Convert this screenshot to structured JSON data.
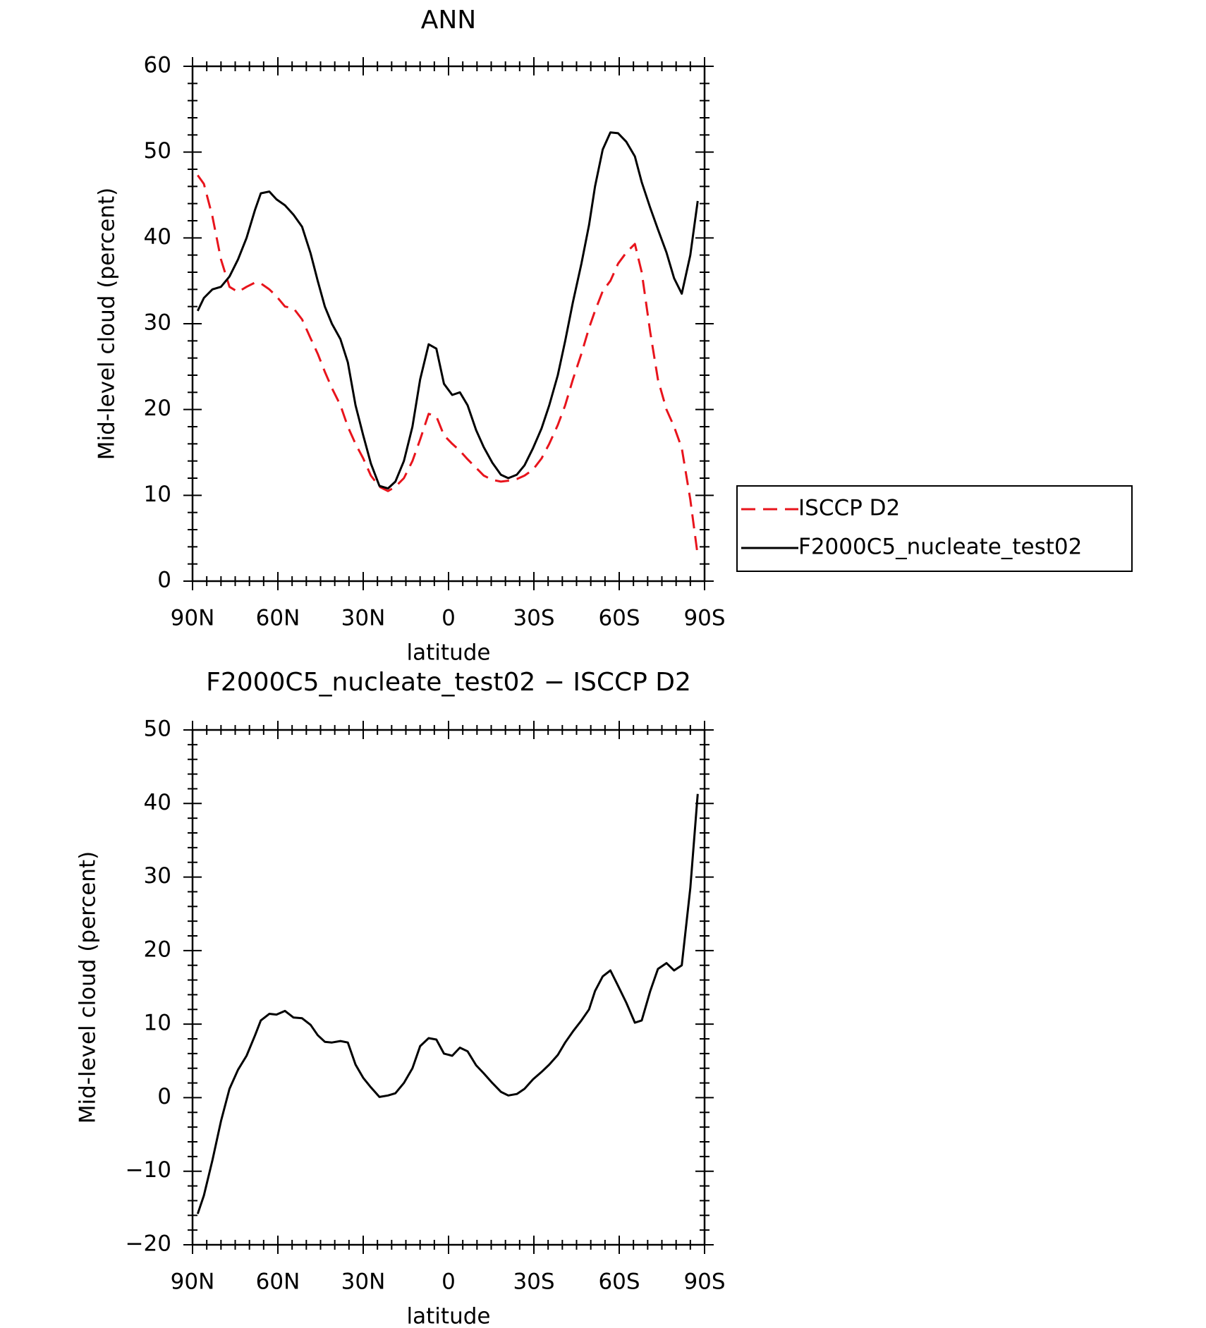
{
  "chart_data": [
    {
      "type": "line",
      "title": "ANN",
      "xlabel": "latitude",
      "ylabel": "Mid-level cloud (percent)",
      "x": [
        88.2,
        86,
        83,
        80,
        77,
        74,
        71,
        68,
        66,
        63,
        60.5,
        57.5,
        54.5,
        51.5,
        48.5,
        46,
        43.5,
        41,
        38,
        35.4,
        32.7,
        30,
        27.3,
        24.3,
        21.3,
        18.7,
        15.7,
        12.7,
        10,
        7,
        4.3,
        1.6,
        -1.3,
        -4,
        -6.7,
        -9.7,
        -12.4,
        -15.4,
        -18.4,
        -21,
        -24,
        -26.7,
        -29.7,
        -32.7,
        -35.4,
        -38.4,
        -41,
        -43.7,
        -46.7,
        -49.4,
        -51.5,
        -54.2,
        -56.9,
        -59.6,
        -62.5,
        -65.5,
        -67.9,
        -70.9,
        -73.6,
        -76.6,
        -79.3,
        -82,
        -85,
        -87.6
      ],
      "series": [
        {
          "name": "ISCCP D2",
          "color": "#e8141c",
          "dashed": true,
          "values": [
            47.3,
            46.3,
            42.5,
            37.5,
            34.3,
            33.7,
            34.3,
            34.8,
            34.7,
            34,
            33.2,
            32,
            31.8,
            30.5,
            28.3,
            26.5,
            24.4,
            22.5,
            20.5,
            18,
            16,
            14.3,
            12.3,
            11,
            10.5,
            11,
            12,
            14,
            16.5,
            19.5,
            19.2,
            17,
            16,
            15.2,
            14.2,
            13.2,
            12.3,
            11.8,
            11.6,
            11.7,
            11.9,
            12.3,
            13,
            14.3,
            16,
            18.2,
            20.5,
            23.5,
            26.5,
            29.5,
            31.5,
            33.8,
            35,
            37,
            38.3,
            39.3,
            36,
            29,
            23.5,
            20,
            18,
            15.5,
            9.5,
            3
          ]
        },
        {
          "name": "F2000C5_nucleate_test02",
          "color": "#000000",
          "dashed": false,
          "values": [
            31.5,
            33,
            34,
            34.3,
            35.5,
            37.5,
            40,
            43.3,
            45.2,
            45.4,
            44.5,
            43.8,
            42.7,
            41.3,
            38.2,
            35,
            32,
            30,
            28.2,
            25.5,
            20.5,
            17,
            13.7,
            11.1,
            10.8,
            11.6,
            14,
            18,
            23.5,
            27.6,
            27.1,
            23,
            21.7,
            22,
            20.5,
            17.6,
            15.6,
            13.8,
            12.4,
            12,
            12.4,
            13.5,
            15.5,
            17.8,
            20.5,
            24,
            28,
            32.5,
            37,
            41.5,
            46,
            50.3,
            52.3,
            52.2,
            51.2,
            49.5,
            46.5,
            43.5,
            41,
            38.3,
            35.3,
            33.5,
            38,
            44.3
          ]
        }
      ],
      "xlim": [
        90,
        -90
      ],
      "xticks": [
        {
          "value": 90,
          "label": "90N"
        },
        {
          "value": 60,
          "label": "60N"
        },
        {
          "value": 30,
          "label": "30N"
        },
        0,
        {
          "value": -30,
          "label": "30S"
        },
        {
          "value": -60,
          "label": "60S"
        },
        {
          "value": -90,
          "label": "90S"
        }
      ],
      "ylim": [
        0,
        60
      ],
      "yticks": [
        0,
        10,
        20,
        30,
        40,
        50,
        60
      ],
      "legend": "right"
    },
    {
      "type": "line",
      "title": "F2000C5_nucleate_test02 − ISCCP D2",
      "xlabel": "latitude",
      "ylabel": "Mid-level cloud (percent)",
      "x": [
        88.2,
        86,
        83,
        80,
        77,
        74,
        71,
        68,
        66,
        63,
        60.5,
        57.5,
        54.5,
        51.5,
        48.5,
        46,
        43.5,
        41,
        38,
        35.4,
        32.7,
        30,
        27.3,
        24.3,
        21.3,
        18.7,
        15.7,
        12.7,
        10,
        7,
        4.3,
        1.6,
        -1.3,
        -4,
        -6.7,
        -9.7,
        -12.4,
        -15.4,
        -18.4,
        -21,
        -24,
        -26.7,
        -29.7,
        -32.7,
        -35.4,
        -38.4,
        -41,
        -43.7,
        -46.7,
        -49.4,
        -51.5,
        -54.2,
        -56.9,
        -59.6,
        -62.5,
        -65.5,
        -67.9,
        -70.9,
        -73.6,
        -76.6,
        -79.3,
        -82,
        -85,
        -87.6
      ],
      "series": [
        {
          "color": "#000000",
          "dashed": false,
          "values": [
            -15.8,
            -13.3,
            -8.5,
            -3.2,
            1.2,
            3.8,
            5.7,
            8.5,
            10.5,
            11.4,
            11.3,
            11.8,
            10.9,
            10.8,
            9.9,
            8.5,
            7.6,
            7.5,
            7.7,
            7.5,
            4.5,
            2.7,
            1.4,
            0.1,
            0.3,
            0.6,
            2,
            4,
            7,
            8.1,
            7.9,
            6,
            5.7,
            6.8,
            6.3,
            4.4,
            3.3,
            2,
            0.8,
            0.3,
            0.5,
            1.2,
            2.5,
            3.5,
            4.5,
            5.8,
            7.5,
            9,
            10.5,
            12,
            14.5,
            16.5,
            17.3,
            15.2,
            12.9,
            10.2,
            10.5,
            14.5,
            17.5,
            18.3,
            17.3,
            18,
            28.5,
            41.3
          ]
        }
      ],
      "xlim": [
        90,
        -90
      ],
      "xticks": [
        {
          "value": 90,
          "label": "90N"
        },
        {
          "value": 60,
          "label": "60N"
        },
        {
          "value": 30,
          "label": "30N"
        },
        0,
        {
          "value": -30,
          "label": "30S"
        },
        {
          "value": -60,
          "label": "60S"
        },
        {
          "value": -90,
          "label": "90S"
        }
      ],
      "ylim": [
        -20,
        50
      ],
      "yticks": [
        {
          "value": -20,
          "label": "−20"
        },
        {
          "value": -10,
          "label": "−10"
        },
        0,
        10,
        20,
        30,
        40,
        50
      ]
    }
  ]
}
